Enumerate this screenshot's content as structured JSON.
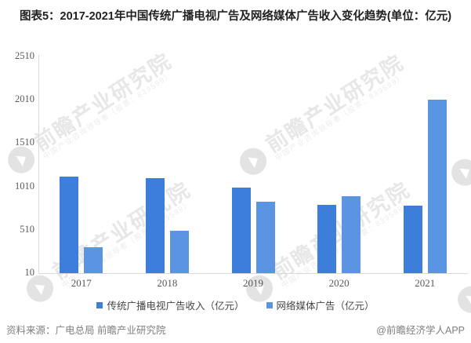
{
  "title": "图表5：2017-2021年中国传统广播电视广告及网络媒体广告收入变化趋势(单位：亿元)",
  "watermark": {
    "logo_icon": "qianzhan-swoosh-icon",
    "text": "前瞻产业研究院",
    "subtext": "中国产业咨询领导者（股票：839599）"
  },
  "legend": {
    "items": [
      {
        "label": "传统广播电视广告收入（亿元）"
      },
      {
        "label": "网络媒体广告（亿元）"
      }
    ]
  },
  "footer": {
    "source": "资料来源：广电总局 前瞻产业研究院",
    "brand": "@前瞻经济学人APP"
  },
  "chart_data": {
    "type": "bar",
    "title": "图表5：2017-2021年中国传统广播电视广告及网络媒体广告收入变化趋势(单位：亿元)",
    "categories": [
      "2017",
      "2018",
      "2019",
      "2020",
      "2021"
    ],
    "series": [
      {
        "name": "传统广播电视广告收入（亿元）",
        "color": "#3D7EDB",
        "values": [
          1120,
          1110,
          1000,
          800,
          790
        ]
      },
      {
        "name": "网络媒体广告（亿元）",
        "color": "#5B94E3",
        "values": [
          305,
          495,
          835,
          895,
          2010
        ]
      }
    ],
    "xlabel": "",
    "ylabel": "",
    "ylim": [
      10,
      2510
    ],
    "yticks": [
      2510,
      2010,
      1510,
      1010,
      510,
      10
    ],
    "grid": false,
    "legend_position": "bottom"
  }
}
